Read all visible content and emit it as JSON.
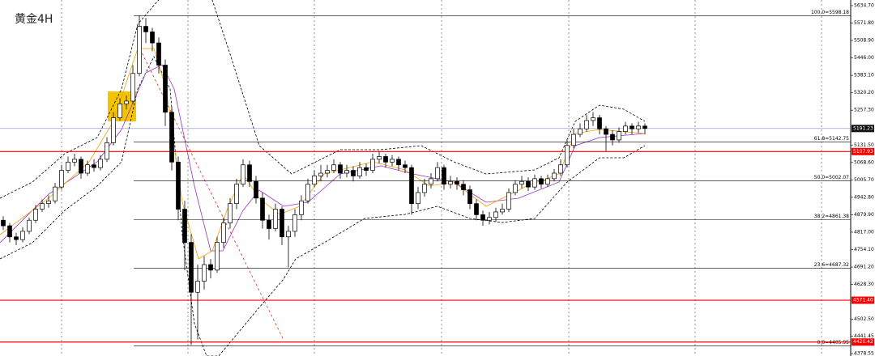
{
  "chart_data": {
    "type": "candlestick",
    "title": "黄金4H",
    "ylim": [
      4370,
      5655
    ],
    "yticks": [
      {
        "value": 5634.7,
        "label": "5634.70"
      },
      {
        "value": 5571.8,
        "label": "5571.80"
      },
      {
        "value": 5508.9,
        "label": "5508.90"
      },
      {
        "value": 5446,
        "label": "5446.00"
      },
      {
        "value": 5383.1,
        "label": "5383.10"
      },
      {
        "value": 5320.2,
        "label": "5320.20"
      },
      {
        "value": 5257.3,
        "label": "5257.30"
      },
      {
        "value": 5131.5,
        "label": "5131.50"
      },
      {
        "value": 5068.6,
        "label": "5068.60"
      },
      {
        "value": 5005.7,
        "label": "5005.70"
      },
      {
        "value": 4942.8,
        "label": "4942.80"
      },
      {
        "value": 4879.9,
        "label": "4879.90"
      },
      {
        "value": 4817,
        "label": "4817.00"
      },
      {
        "value": 4754.1,
        "label": "4754.10"
      },
      {
        "value": 4691.2,
        "label": "4691.20"
      },
      {
        "value": 4628.3,
        "label": "4628.30"
      },
      {
        "value": 4502.5,
        "label": "4502.50"
      },
      {
        "value": 4441.45,
        "label": "4441.45"
      },
      {
        "value": 4378.55,
        "label": "4378.55"
      }
    ],
    "up_color": "#ffffff",
    "down_color": "#000000",
    "open": [
      4860,
      4840,
      4800,
      4790,
      4820,
      4860,
      4900,
      4920,
      4930,
      4980,
      5040,
      5070,
      5080,
      5030,
      5060,
      5050,
      5080,
      5140,
      5230,
      5280,
      5290,
      5390,
      5560,
      5540,
      5500,
      5420,
      5250,
      5070,
      4900,
      4780,
      4600,
      4640,
      4700,
      4680,
      4780,
      4850,
      4920,
      4990,
      5060,
      5000,
      4940,
      4860,
      4830,
      4900,
      4800,
      4820,
      4880,
      4930,
      4990,
      5020,
      5030,
      5040,
      5060,
      5030,
      5040,
      5020,
      5050,
      5040,
      5080,
      5090,
      5070,
      5080,
      5060,
      5050,
      4920,
      4960,
      4990,
      5010,
      5050,
      4990,
      5000,
      4990,
      4970,
      4920,
      4880,
      4860,
      4870,
      4890,
      4900,
      4960,
      4990,
      5000,
      4980,
      5010,
      4990,
      5010,
      5030,
      5060,
      5130,
      5170,
      5190,
      5220,
      5230,
      5190,
      5170,
      5150,
      5180,
      5200,
      5190,
      5200
    ],
    "high": [
      4875,
      4850,
      4815,
      4835,
      4870,
      4915,
      4935,
      4950,
      4995,
      5060,
      5090,
      5100,
      5090,
      5075,
      5080,
      5095,
      5160,
      5250,
      5300,
      5310,
      5420,
      5600,
      5590,
      5555,
      5520,
      5440,
      5270,
      5090,
      4930,
      4810,
      4700,
      4730,
      4720,
      4800,
      4870,
      4940,
      5010,
      5080,
      5075,
      5020,
      4960,
      4880,
      4920,
      4910,
      4840,
      4900,
      4950,
      5010,
      5040,
      5060,
      5060,
      5080,
      5070,
      5060,
      5055,
      5070,
      5065,
      5100,
      5110,
      5100,
      5095,
      5090,
      5075,
      5060,
      4980,
      5010,
      5030,
      5070,
      5060,
      5020,
      5015,
      5005,
      4985,
      4935,
      4895,
      4890,
      4905,
      4920,
      4975,
      5005,
      5020,
      5015,
      5025,
      5020,
      5025,
      5045,
      5080,
      5150,
      5190,
      5210,
      5240,
      5250,
      5240,
      5200,
      5185,
      5195,
      5215,
      5210,
      5215,
      5210
    ],
    "low": [
      4825,
      4780,
      4770,
      4780,
      4810,
      4850,
      4890,
      4905,
      4920,
      4970,
      5030,
      5055,
      5010,
      5020,
      5035,
      5040,
      5070,
      5130,
      5220,
      5260,
      5280,
      5380,
      5500,
      5470,
      5390,
      5200,
      5040,
      4860,
      4680,
      4410,
      4430,
      4610,
      4650,
      4670,
      4760,
      4830,
      4900,
      4980,
      4980,
      4920,
      4830,
      4790,
      4820,
      4770,
      4690,
      4800,
      4860,
      4920,
      4980,
      5000,
      5015,
      5030,
      5010,
      5015,
      5000,
      5010,
      5020,
      5030,
      5065,
      5050,
      5055,
      5040,
      5030,
      4880,
      4900,
      4945,
      4975,
      5000,
      4970,
      4975,
      4970,
      4950,
      4900,
      4860,
      4840,
      4845,
      4855,
      4880,
      4890,
      4950,
      4975,
      4965,
      4970,
      4975,
      4980,
      5000,
      5020,
      5050,
      5120,
      5160,
      5180,
      5200,
      5170,
      5110,
      5130,
      5140,
      5170,
      5170,
      5175,
      5170
    ],
    "close": [
      4840,
      4800,
      4790,
      4820,
      4860,
      4900,
      4920,
      4930,
      4980,
      5040,
      5070,
      5080,
      5030,
      5060,
      5050,
      5080,
      5140,
      5230,
      5280,
      5290,
      5390,
      5560,
      5540,
      5500,
      5420,
      5250,
      5070,
      4900,
      4780,
      4600,
      4640,
      4700,
      4680,
      4780,
      4850,
      4920,
      4990,
      5060,
      5000,
      4940,
      4860,
      4830,
      4900,
      4800,
      4820,
      4880,
      4930,
      4990,
      5020,
      5030,
      5040,
      5060,
      5030,
      5040,
      5020,
      5050,
      5040,
      5080,
      5090,
      5070,
      5080,
      5060,
      5050,
      4920,
      4960,
      4990,
      5010,
      5050,
      4990,
      5000,
      4990,
      4970,
      4920,
      4880,
      4860,
      4870,
      4890,
      4900,
      4960,
      4990,
      5000,
      4980,
      5010,
      4990,
      5010,
      5030,
      5060,
      5130,
      5170,
      5190,
      5220,
      5230,
      5190,
      5170,
      5150,
      5180,
      5200,
      5190,
      5200,
      5191.23
    ],
    "fib_levels": {
      "color": "#000000",
      "values": [
        5598.18,
        5142.75,
        5002.07,
        4861.38,
        4687.32,
        4405.95
      ],
      "value_labels": [
        "100.0=5598.18",
        "61.8=5142.75",
        "50.0=5002.07",
        "38.2=4861.38",
        "23.6=4687.32",
        "0.0=4405.95"
      ]
    },
    "support_levels": {
      "color": "#ff0000",
      "values": [
        5107.93,
        4571.4,
        4420.42
      ],
      "value_labels": [
        "5107.93",
        "4571.40",
        "4420.42"
      ]
    },
    "last_price": {
      "value": 5191.23,
      "label": "5191.23",
      "color": "#8c8cc8"
    }
  }
}
